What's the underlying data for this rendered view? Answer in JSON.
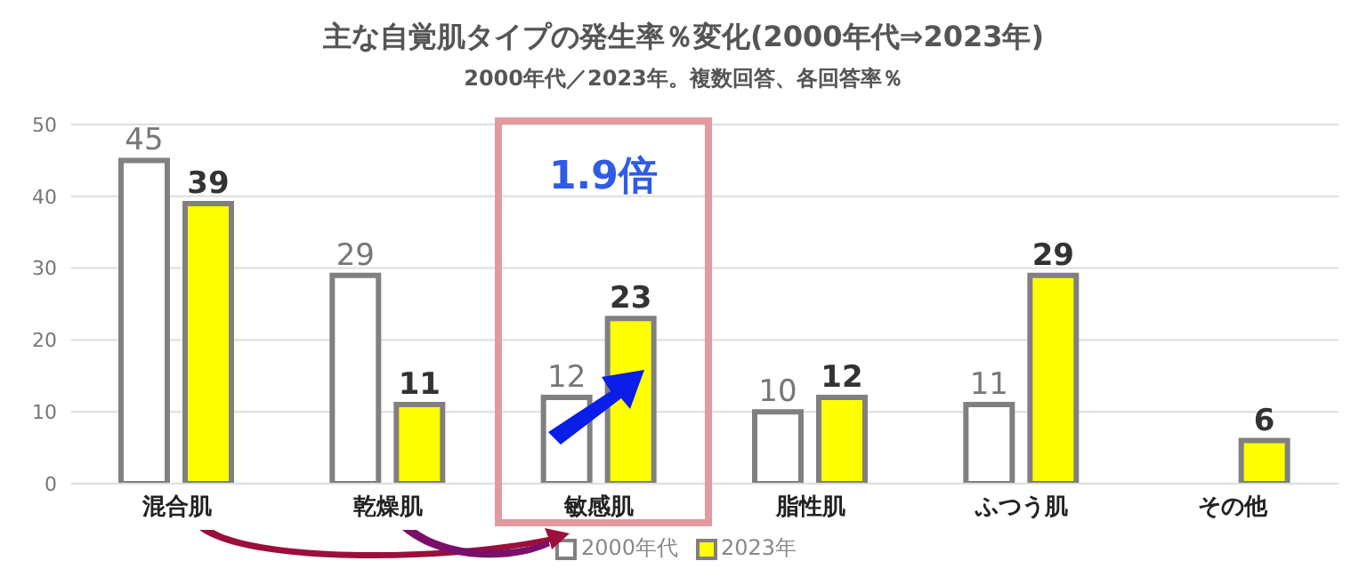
{
  "chart_data": {
    "type": "bar",
    "title": "主な自覚肌タイプの発生率％変化(2000年代⇒2023年)",
    "subtitle": "2000年代／2023年。複数回答、各回答率％",
    "categories": [
      "混合肌",
      "乾燥肌",
      "敏感肌",
      "脂性肌",
      "ふつう肌",
      "その他"
    ],
    "series": [
      {
        "name": "2000年代",
        "color": "#ffffff",
        "values": [
          45,
          29,
          12,
          10,
          11,
          null
        ]
      },
      {
        "name": "2023年",
        "color": "#ffff00",
        "values": [
          39,
          11,
          23,
          12,
          29,
          6
        ]
      }
    ],
    "ylim": [
      0,
      50
    ],
    "yticks": [
      0,
      10,
      20,
      30,
      40,
      50
    ],
    "grid": "y",
    "legend": "bottom",
    "data_labels": true,
    "annotations": [
      "1.9倍"
    ]
  }
}
